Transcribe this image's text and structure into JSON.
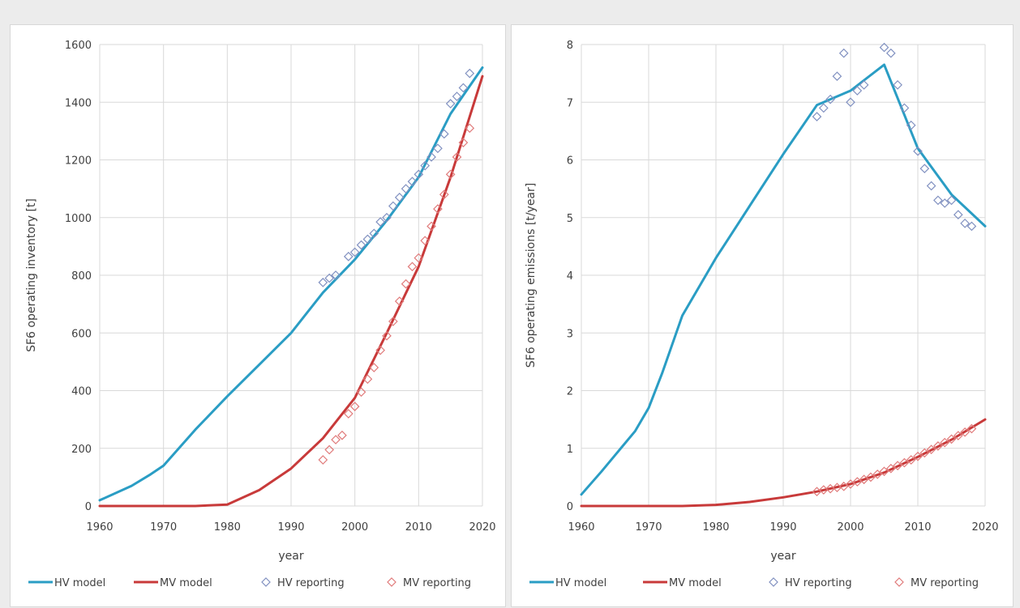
{
  "colors": {
    "hv": "#2a9dc4",
    "mv": "#c83a3a",
    "hv_marker": "#8090c0",
    "mv_marker": "#e07a7a",
    "grid": "#d9d9d9"
  },
  "chart_data": [
    {
      "type": "line",
      "title": "",
      "xlabel": "year",
      "ylabel": "SF6 operating inventory [t]",
      "xlim": [
        1960,
        2020
      ],
      "ylim": [
        0,
        1600
      ],
      "xticks": [
        1960,
        1970,
        1980,
        1990,
        2000,
        2010,
        2020
      ],
      "yticks": [
        0,
        200,
        400,
        600,
        800,
        1000,
        1200,
        1400,
        1600
      ],
      "grid": true,
      "legend_position": "bottom",
      "series": [
        {
          "name": "HV  model",
          "kind": "line",
          "color": "hv",
          "x": [
            1960,
            1965,
            1968,
            1970,
            1975,
            1980,
            1985,
            1990,
            1995,
            2000,
            2005,
            2010,
            2015,
            2020
          ],
          "y": [
            20,
            70,
            110,
            140,
            265,
            380,
            490,
            600,
            740,
            855,
            990,
            1140,
            1360,
            1520
          ]
        },
        {
          "name": "MV model",
          "kind": "line",
          "color": "mv",
          "x": [
            1960,
            1970,
            1975,
            1980,
            1985,
            1990,
            1995,
            2000,
            2005,
            2010,
            2015,
            2020
          ],
          "y": [
            0,
            0,
            0,
            5,
            55,
            130,
            235,
            375,
            600,
            830,
            1140,
            1490
          ]
        },
        {
          "name": "HV reporting",
          "kind": "scatter",
          "color": "hv_marker",
          "x": [
            1995,
            1996,
            1997,
            1999,
            2000,
            2001,
            2002,
            2003,
            2004,
            2005,
            2006,
            2007,
            2008,
            2009,
            2010,
            2011,
            2012,
            2013,
            2014,
            2015,
            2016,
            2017,
            2018
          ],
          "y": [
            775,
            790,
            800,
            865,
            880,
            905,
            925,
            945,
            985,
            1000,
            1040,
            1070,
            1100,
            1125,
            1150,
            1180,
            1210,
            1240,
            1290,
            1395,
            1420,
            1450,
            1500
          ]
        },
        {
          "name": "MV reporting",
          "kind": "scatter",
          "color": "mv_marker",
          "x": [
            1995,
            1996,
            1997,
            1998,
            1999,
            2000,
            2001,
            2002,
            2003,
            2004,
            2005,
            2006,
            2007,
            2008,
            2009,
            2010,
            2011,
            2012,
            2013,
            2014,
            2015,
            2016,
            2017,
            2018
          ],
          "y": [
            160,
            195,
            230,
            245,
            320,
            345,
            395,
            440,
            480,
            540,
            590,
            640,
            710,
            770,
            830,
            860,
            920,
            970,
            1030,
            1080,
            1150,
            1210,
            1260,
            1310
          ]
        }
      ]
    },
    {
      "type": "line",
      "title": "",
      "xlabel": "year",
      "ylabel": "SF6 operating emissions [t/year]",
      "xlim": [
        1960,
        2020
      ],
      "ylim": [
        0,
        8
      ],
      "xticks": [
        1960,
        1970,
        1980,
        1990,
        2000,
        2010,
        2020
      ],
      "yticks": [
        0,
        1,
        2,
        3,
        4,
        5,
        6,
        7,
        8
      ],
      "grid": true,
      "legend_position": "bottom",
      "series": [
        {
          "name": "HV  model",
          "kind": "line",
          "color": "hv",
          "x": [
            1960,
            1963,
            1968,
            1970,
            1972,
            1975,
            1980,
            1985,
            1990,
            1995,
            2000,
            2005,
            2010,
            2015,
            2020
          ],
          "y": [
            0.2,
            0.6,
            1.3,
            1.7,
            2.3,
            3.3,
            4.3,
            5.2,
            6.1,
            6.95,
            7.2,
            7.65,
            6.2,
            5.4,
            4.85
          ]
        },
        {
          "name": "MV model",
          "kind": "line",
          "color": "mv",
          "x": [
            1960,
            1975,
            1980,
            1985,
            1990,
            1995,
            2000,
            2005,
            2010,
            2015,
            2020
          ],
          "y": [
            0,
            0,
            0.02,
            0.07,
            0.15,
            0.25,
            0.38,
            0.58,
            0.85,
            1.15,
            1.5
          ]
        },
        {
          "name": "HV reporting",
          "kind": "scatter",
          "color": "hv_marker",
          "x": [
            1995,
            1996,
            1997,
            1998,
            1999,
            2000,
            2001,
            2002,
            2005,
            2006,
            2007,
            2008,
            2009,
            2010,
            2011,
            2012,
            2013,
            2014,
            2015,
            2016,
            2017,
            2018
          ],
          "y": [
            6.75,
            6.9,
            7.05,
            7.45,
            7.85,
            7.0,
            7.2,
            7.3,
            7.95,
            7.85,
            7.3,
            6.9,
            6.6,
            6.15,
            5.85,
            5.55,
            5.3,
            5.25,
            5.3,
            5.05,
            4.9,
            4.85
          ]
        },
        {
          "name": "MV reporting",
          "kind": "scatter",
          "color": "mv_marker",
          "x": [
            1995,
            1996,
            1997,
            1998,
            1999,
            2000,
            2001,
            2002,
            2003,
            2004,
            2005,
            2006,
            2007,
            2008,
            2009,
            2010,
            2011,
            2012,
            2013,
            2014,
            2015,
            2016,
            2017,
            2018
          ],
          "y": [
            0.25,
            0.28,
            0.3,
            0.32,
            0.34,
            0.38,
            0.42,
            0.46,
            0.5,
            0.55,
            0.6,
            0.65,
            0.7,
            0.75,
            0.8,
            0.86,
            0.92,
            0.98,
            1.04,
            1.1,
            1.16,
            1.22,
            1.28,
            1.34
          ]
        }
      ]
    }
  ]
}
